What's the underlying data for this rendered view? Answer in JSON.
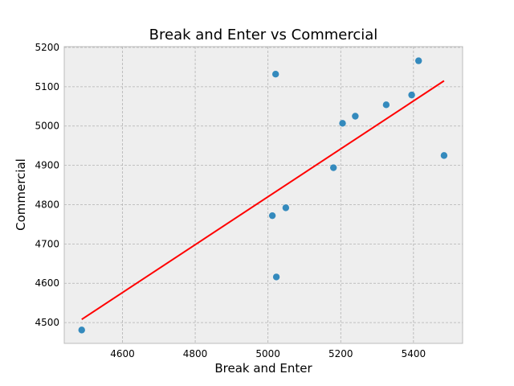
{
  "chart_data": {
    "type": "scatter",
    "title": "Break and Enter vs Commercial",
    "xlabel": "Break and Enter",
    "ylabel": "Commercial",
    "xlim": [
      4440,
      5535
    ],
    "ylim": [
      4447,
      5202
    ],
    "xticks": [
      4600,
      4800,
      5000,
      5200,
      5400
    ],
    "yticks": [
      4500,
      4600,
      4700,
      4800,
      4900,
      5000,
      5100,
      5200
    ],
    "grid": true,
    "legend": "none",
    "points": [
      {
        "x": 4488,
        "y": 4481
      },
      {
        "x": 5012,
        "y": 4772
      },
      {
        "x": 5021,
        "y": 5132
      },
      {
        "x": 5023,
        "y": 4616
      },
      {
        "x": 5049,
        "y": 4792
      },
      {
        "x": 5180,
        "y": 4894
      },
      {
        "x": 5205,
        "y": 5007
      },
      {
        "x": 5240,
        "y": 5025
      },
      {
        "x": 5325,
        "y": 5054
      },
      {
        "x": 5395,
        "y": 5079
      },
      {
        "x": 5414,
        "y": 5166
      },
      {
        "x": 5484,
        "y": 4925
      }
    ],
    "trendline": {
      "x": [
        4488,
        5484
      ],
      "y": [
        4508,
        5115
      ]
    },
    "colors": {
      "points": "#348abd",
      "trendline": "#ff0000",
      "plot_background": "#eeeeee",
      "grid": "#b2b2b2",
      "frame": "#bcbcbc"
    }
  }
}
